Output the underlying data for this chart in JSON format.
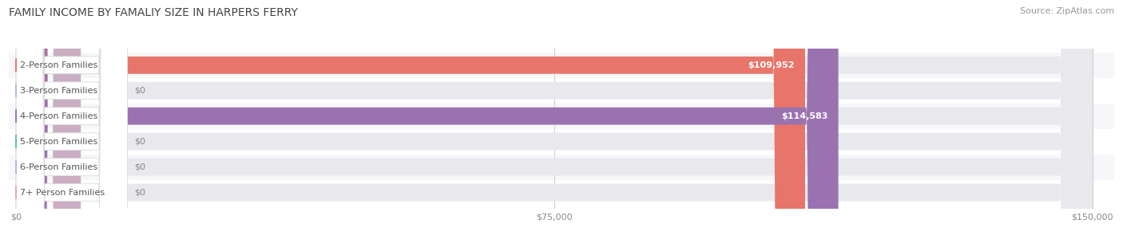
{
  "title": "FAMILY INCOME BY FAMALIY SIZE IN HARPERS FERRY",
  "source": "Source: ZipAtlas.com",
  "categories": [
    "2-Person Families",
    "3-Person Families",
    "4-Person Families",
    "5-Person Families",
    "6-Person Families",
    "7+ Person Families"
  ],
  "values": [
    109952,
    0,
    114583,
    0,
    0,
    0
  ],
  "bar_colors": [
    "#E8756A",
    "#A8BEDD",
    "#9B72B0",
    "#5BBDBA",
    "#A8BADF",
    "#F4A0B5"
  ],
  "value_labels": [
    "$109,952",
    "$0",
    "$114,583",
    "$0",
    "$0",
    "$0"
  ],
  "xlim_max": 150000,
  "xticks": [
    0,
    75000,
    150000
  ],
  "xticklabels": [
    "$0",
    "$75,000",
    "$150,000"
  ],
  "background_color": "#ffffff",
  "bar_bg_color": "#e8e8ed",
  "row_bg_colors": [
    "#f7f7f9",
    "#ffffff",
    "#f7f7f9",
    "#ffffff",
    "#f7f7f9",
    "#ffffff"
  ],
  "title_fontsize": 10,
  "source_fontsize": 8,
  "label_fontsize": 8,
  "value_fontsize": 8
}
